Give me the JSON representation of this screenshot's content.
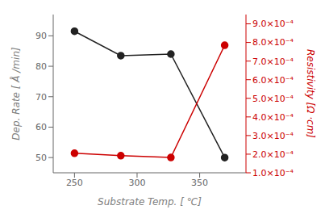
{
  "chart_data": {
    "type": "line",
    "xlabel": "Substrate Temp. [ ℃]",
    "ylabel": "Dep. Rate [ Å /min]",
    "y2label": "Resistivity [Ω ·cm]",
    "x": [
      250,
      287,
      327,
      370
    ],
    "xlim": [
      233,
      387
    ],
    "xticks": [
      250,
      300,
      350
    ],
    "ylim": [
      45,
      97
    ],
    "yticks": [
      50,
      60,
      70,
      80,
      90
    ],
    "y2lim": [
      0.0001,
      0.00095
    ],
    "y2ticks": [
      {
        "value": 0.0001,
        "label": "1.0×10⁻⁴"
      },
      {
        "value": 0.0002,
        "label": "2.0×10⁻⁴"
      },
      {
        "value": 0.0003,
        "label": "3.0×10⁻⁴"
      },
      {
        "value": 0.0004,
        "label": "4.0×10⁻⁴"
      },
      {
        "value": 0.0005,
        "label": "5.0×10⁻⁴"
      },
      {
        "value": 0.0006,
        "label": "6.0×10⁻⁴"
      },
      {
        "value": 0.0007,
        "label": "7.0×10⁻⁴"
      },
      {
        "value": 0.0008,
        "label": "8.0×10⁻⁴"
      },
      {
        "value": 0.0009,
        "label": "9.0×10⁻⁴"
      }
    ],
    "series": [
      {
        "color": "#222222",
        "marker": "circle",
        "values": [
          91.5,
          83.5,
          84.0,
          50.0
        ]
      },
      {
        "color": "#cc0000",
        "marker": "circle",
        "axis": "y2",
        "values": [
          0.000205,
          0.000192,
          0.000182,
          0.000785
        ]
      }
    ]
  }
}
